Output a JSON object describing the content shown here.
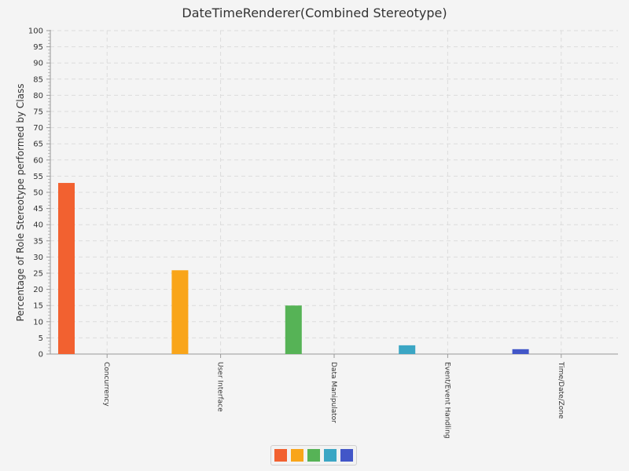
{
  "chart_data": {
    "type": "bar",
    "title": "DateTimeRenderer(Combined Stereotype)",
    "xlabel": "",
    "ylabel": "Percentage of Role Stereotype performed by Class",
    "ylim": [
      0,
      100
    ],
    "yticks": [
      0,
      5,
      10,
      15,
      20,
      25,
      30,
      35,
      40,
      45,
      50,
      55,
      60,
      65,
      70,
      75,
      80,
      85,
      90,
      95,
      100
    ],
    "categories": [
      "Concurrency",
      "User Interface",
      "Data Manipulator",
      "Event/Event Handling",
      "Time/Date/Zone"
    ],
    "values": [
      52.9,
      25.9,
      15.0,
      2.7,
      1.5
    ],
    "colors": [
      "#f26130",
      "#f9a51a",
      "#56b356",
      "#3ba6c4",
      "#4256c8"
    ],
    "grid": true,
    "legend": {
      "placement": "bottom-center"
    }
  }
}
